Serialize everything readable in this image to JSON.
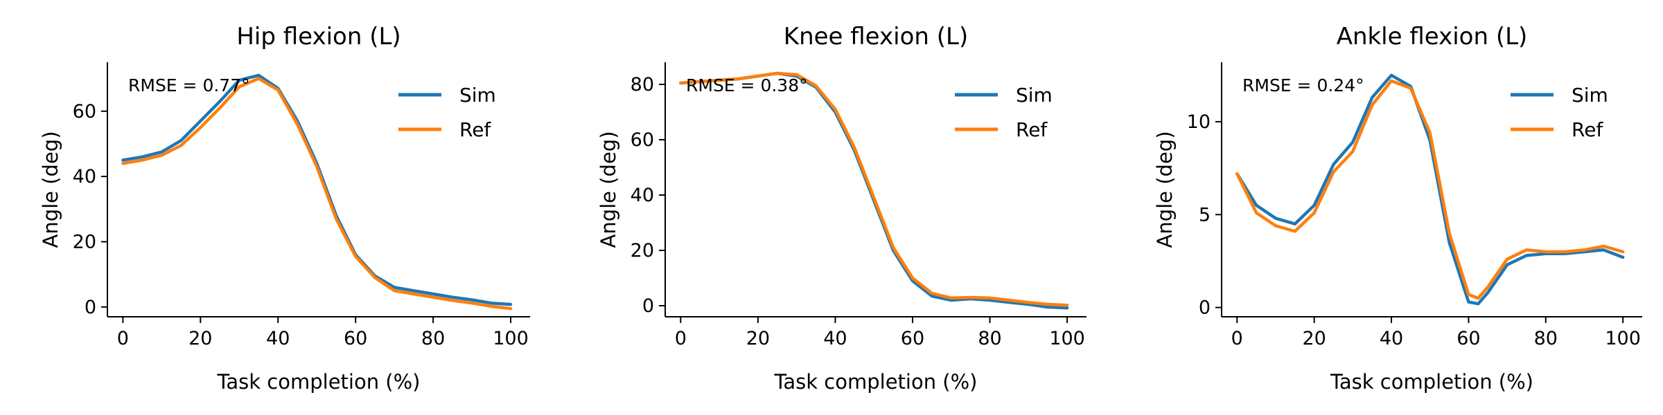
{
  "colors": {
    "sim": "#1f77b4",
    "ref": "#ff7f0e"
  },
  "chart_data": [
    {
      "type": "line",
      "title": "Hip flexion (L)",
      "xlabel": "Task completion (%)",
      "ylabel": "Angle (deg)",
      "annotation": "RMSE = 0.77°",
      "legend": "top-right",
      "grid": false,
      "xlim": [
        -4,
        105
      ],
      "ylim": [
        -3,
        75
      ],
      "xticks": [
        0,
        20,
        40,
        60,
        80,
        100
      ],
      "yticks": [
        0,
        20,
        40,
        60
      ],
      "x": [
        0,
        5,
        10,
        15,
        20,
        25,
        30,
        35,
        40,
        45,
        50,
        55,
        60,
        65,
        70,
        75,
        80,
        85,
        90,
        95,
        100
      ],
      "series": [
        {
          "name": "Sim",
          "values": [
            45,
            46,
            47.5,
            51,
            57,
            63,
            69.5,
            71,
            67,
            57,
            44,
            28,
            16,
            9.5,
            6,
            5,
            4,
            3,
            2.2,
            1.2,
            0.8
          ]
        },
        {
          "name": "Ref",
          "values": [
            44,
            45,
            46.5,
            49.5,
            55,
            61,
            67.5,
            70,
            66.5,
            56,
            43,
            27,
            15.5,
            9,
            5,
            4,
            3,
            2,
            1.2,
            0.2,
            -0.5
          ]
        }
      ]
    },
    {
      "type": "line",
      "title": "Knee flexion (L)",
      "xlabel": "Task completion (%)",
      "ylabel": "Angle (deg)",
      "annotation": "RMSE = 0.38°",
      "legend": "top-right",
      "grid": false,
      "xlim": [
        -4,
        105
      ],
      "ylim": [
        -4,
        88
      ],
      "xticks": [
        0,
        20,
        40,
        60,
        80,
        100
      ],
      "yticks": [
        0,
        20,
        40,
        60,
        80
      ],
      "x": [
        0,
        5,
        10,
        15,
        20,
        25,
        30,
        35,
        40,
        45,
        50,
        55,
        60,
        65,
        70,
        75,
        80,
        85,
        90,
        95,
        100
      ],
      "series": [
        {
          "name": "Sim",
          "values": [
            80.5,
            81,
            81.5,
            82,
            83,
            84,
            83,
            79,
            70,
            56,
            38,
            20,
            9,
            3.5,
            2,
            2.5,
            2,
            1.2,
            0.5,
            -0.5,
            -0.8
          ]
        },
        {
          "name": "Ref",
          "values": [
            80.5,
            81,
            81.5,
            82,
            83,
            84,
            83.5,
            79.5,
            71,
            57,
            39,
            21,
            10,
            4.5,
            2.8,
            3,
            2.8,
            2,
            1.2,
            0.5,
            0.2
          ]
        }
      ]
    },
    {
      "type": "line",
      "title": "Ankle flexion (L)",
      "xlabel": "Task completion (%)",
      "ylabel": "Angle (deg)",
      "annotation": "RMSE = 0.24°",
      "legend": "top-right",
      "grid": false,
      "xlim": [
        -4,
        105
      ],
      "ylim": [
        -0.5,
        13.2
      ],
      "xticks": [
        0,
        20,
        40,
        60,
        80,
        100
      ],
      "yticks": [
        0,
        5,
        10
      ],
      "x": [
        0,
        5,
        10,
        15,
        20,
        25,
        30,
        35,
        40,
        45,
        50,
        55,
        60,
        62.5,
        65,
        70,
        75,
        80,
        85,
        90,
        95,
        100
      ],
      "series": [
        {
          "name": "Sim",
          "values": [
            7.2,
            5.5,
            4.8,
            4.5,
            5.5,
            7.7,
            8.9,
            11.3,
            12.5,
            11.9,
            9,
            3.5,
            0.3,
            0.2,
            0.8,
            2.3,
            2.8,
            2.9,
            2.9,
            3,
            3.1,
            2.7
          ]
        },
        {
          "name": "Ref",
          "values": [
            7.2,
            5.1,
            4.4,
            4.1,
            5.1,
            7.3,
            8.4,
            10.9,
            12.2,
            11.8,
            9.4,
            4,
            0.7,
            0.5,
            1.1,
            2.6,
            3.1,
            3,
            3,
            3.1,
            3.3,
            3
          ]
        }
      ]
    }
  ]
}
